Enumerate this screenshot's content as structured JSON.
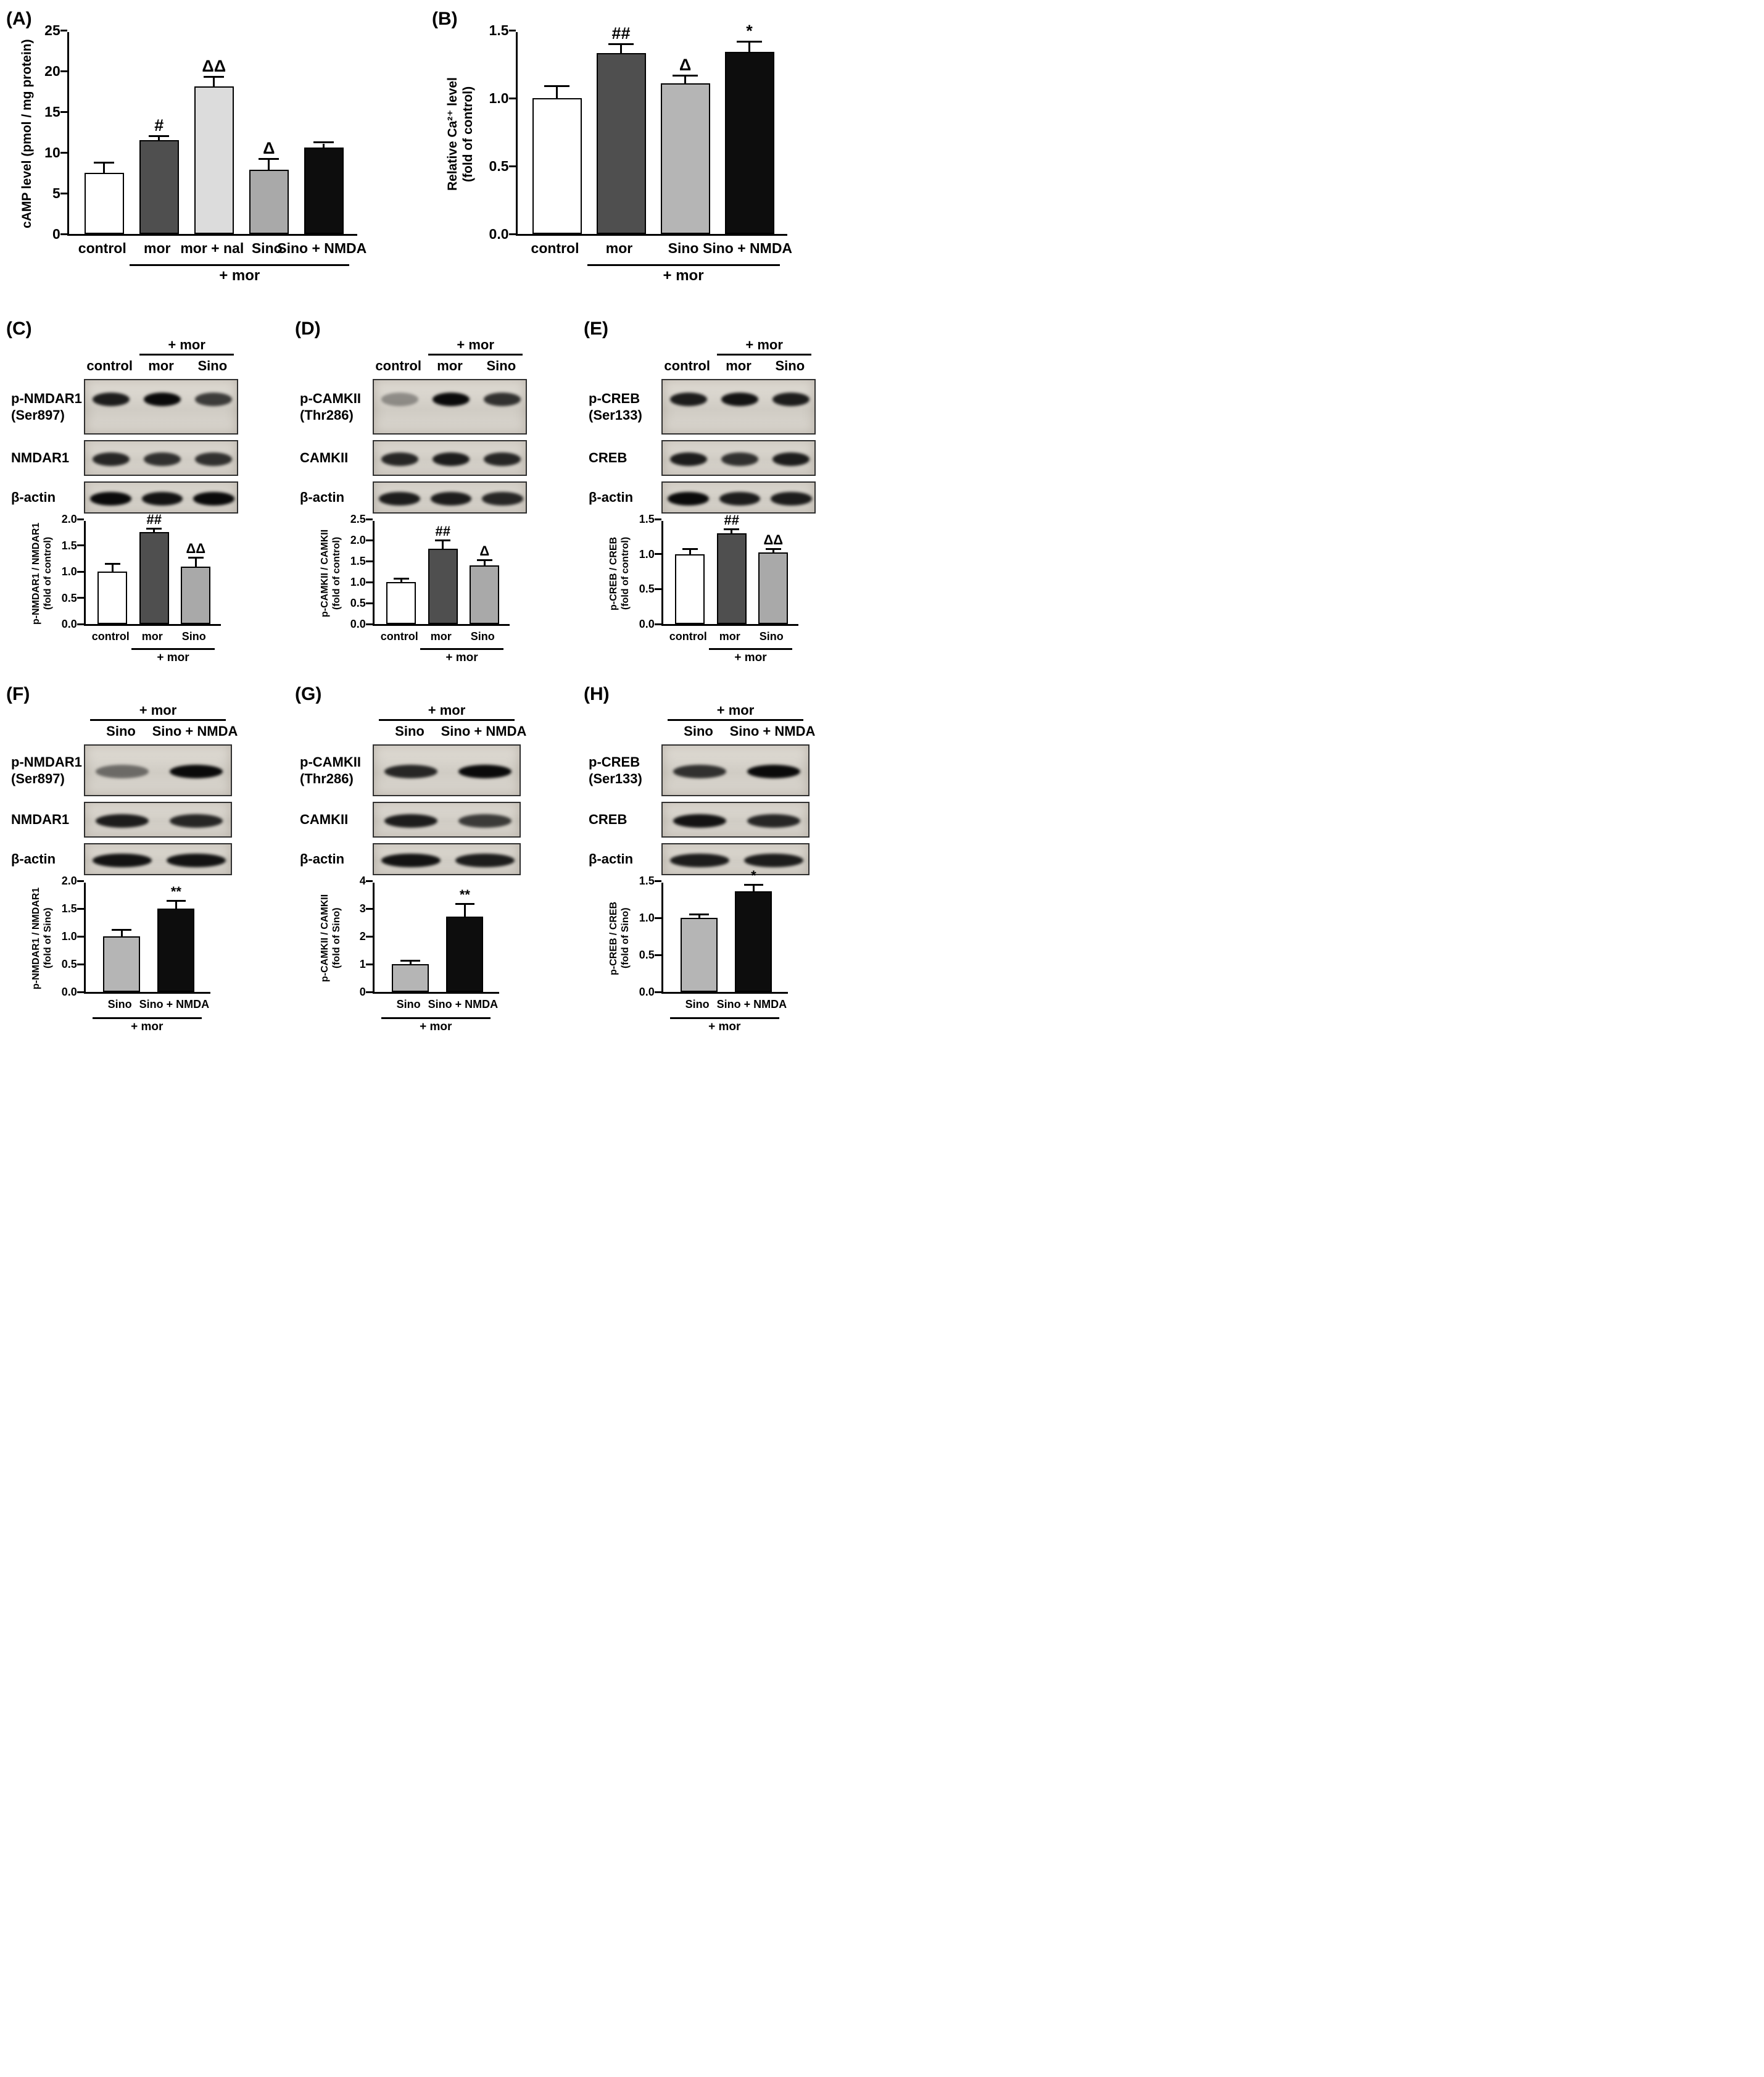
{
  "panels": {
    "A": {
      "label": "(A)"
    },
    "B": {
      "label": "(B)"
    },
    "C": {
      "label": "(C)",
      "blot": {
        "group_label": "+ mor",
        "group_span": [
          1,
          2
        ],
        "lanes": [
          "control",
          "mor",
          "Sino"
        ],
        "rows": [
          {
            "label": "p-NMDAR1",
            "sublabel": "(Ser897)",
            "bands": [
              0.9,
              1,
              0.75
            ]
          },
          {
            "label": "NMDAR1",
            "bands": [
              0.85,
              0.8,
              0.8
            ]
          },
          {
            "label": "β-actin",
            "bands": [
              1,
              0.95,
              1
            ]
          }
        ]
      }
    },
    "D": {
      "label": "(D)",
      "blot": {
        "group_label": "+ mor",
        "group_span": [
          1,
          2
        ],
        "lanes": [
          "control",
          "mor",
          "Sino"
        ],
        "rows": [
          {
            "label": "p-CAMKII",
            "sublabel": "(Thr286)",
            "bands": [
              0.35,
              1,
              0.8
            ]
          },
          {
            "label": "CAMKII",
            "bands": [
              0.85,
              0.9,
              0.85
            ]
          },
          {
            "label": "β-actin",
            "bands": [
              0.9,
              0.9,
              0.85
            ]
          }
        ]
      }
    },
    "E": {
      "label": "(E)",
      "blot": {
        "group_label": "+ mor",
        "group_span": [
          1,
          2
        ],
        "lanes": [
          "control",
          "mor",
          "Sino"
        ],
        "rows": [
          {
            "label": "p-CREB",
            "sublabel": "(Ser133)",
            "bands": [
              0.9,
              0.95,
              0.9
            ]
          },
          {
            "label": "CREB",
            "bands": [
              0.9,
              0.8,
              0.9
            ]
          },
          {
            "label": "β-actin",
            "bands": [
              1,
              0.9,
              0.9
            ]
          }
        ]
      }
    },
    "F": {
      "label": "(F)",
      "blot": {
        "group_label": "+ mor",
        "group_span": [
          0,
          1
        ],
        "lanes": [
          "Sino",
          "Sino + NMDA"
        ],
        "rows": [
          {
            "label": "p-NMDAR1",
            "sublabel": "(Ser897)",
            "bands": [
              0.5,
              1
            ]
          },
          {
            "label": "NMDAR1",
            "bands": [
              0.9,
              0.85
            ]
          },
          {
            "label": "β-actin",
            "bands": [
              0.95,
              0.95
            ]
          }
        ]
      }
    },
    "G": {
      "label": "(G)",
      "blot": {
        "group_label": "+ mor",
        "group_span": [
          0,
          1
        ],
        "lanes": [
          "Sino",
          "Sino + NMDA"
        ],
        "rows": [
          {
            "label": "p-CAMKII",
            "sublabel": "(Thr286)",
            "bands": [
              0.85,
              1
            ]
          },
          {
            "label": "CAMKII",
            "bands": [
              0.9,
              0.75
            ]
          },
          {
            "label": "β-actin",
            "bands": [
              0.95,
              0.9
            ]
          }
        ]
      }
    },
    "H": {
      "label": "(H)",
      "blot": {
        "group_label": "+ mor",
        "group_span": [
          0,
          1
        ],
        "lanes": [
          "Sino",
          "Sino + NMDA"
        ],
        "rows": [
          {
            "label": "p-CREB",
            "sublabel": "(Ser133)",
            "bands": [
              0.8,
              1
            ]
          },
          {
            "label": "CREB",
            "bands": [
              0.95,
              0.85
            ]
          },
          {
            "label": "β-actin",
            "bands": [
              0.9,
              0.9
            ]
          }
        ]
      }
    }
  },
  "chart_data": [
    {
      "panel": "A",
      "type": "bar",
      "ylabel": "cAMP level (pmol / mg protein)",
      "ylim": [
        0,
        25
      ],
      "yticks": [
        "0",
        "5",
        "10",
        "15",
        "20",
        "25"
      ],
      "categories": [
        "control",
        "mor",
        "mor + nal",
        "Sino",
        "Sino + NMDA"
      ],
      "values": [
        7.5,
        11.5,
        18.1,
        7.9,
        10.6
      ],
      "errors": [
        1.1,
        0.4,
        1.1,
        1.2,
        0.5
      ],
      "annotations": [
        "",
        "#",
        "ΔΔ",
        "Δ",
        ""
      ],
      "bar_colors": [
        "#ffffff",
        "#4f4f4f",
        "#dcdcdc",
        "#a9a9a9",
        "#0d0d0d"
      ],
      "group_label": "+ mor",
      "group_span": [
        1,
        4
      ]
    },
    {
      "panel": "B",
      "type": "bar",
      "ylabel": "Relative Ca²⁺ level\n(fold of control)",
      "ylim": [
        0,
        1.5
      ],
      "yticks": [
        "0.0",
        "0.5",
        "1.0",
        "1.5"
      ],
      "categories": [
        "control",
        "mor",
        "Sino",
        "Sino + NMDA"
      ],
      "values": [
        1.0,
        1.33,
        1.11,
        1.34
      ],
      "errors": [
        0.08,
        0.06,
        0.05,
        0.07
      ],
      "annotations": [
        "",
        "##",
        "Δ",
        "*"
      ],
      "bar_colors": [
        "#ffffff",
        "#4f4f4f",
        "#b5b5b5",
        "#0d0d0d"
      ],
      "group_label": "+ mor",
      "group_span": [
        1,
        3
      ]
    },
    {
      "panel": "C",
      "type": "bar",
      "ylabel": "p-NMDAR1 / NMDAR1\n(fold of control)",
      "ylim": [
        0,
        2.0
      ],
      "yticks": [
        "0.0",
        "0.5",
        "1.0",
        "1.5",
        "2.0"
      ],
      "categories": [
        "control",
        "mor",
        "Sino"
      ],
      "values": [
        1.0,
        1.75,
        1.1
      ],
      "errors": [
        0.13,
        0.05,
        0.15
      ],
      "annotations": [
        "",
        "##",
        "ΔΔ"
      ],
      "bar_colors": [
        "#ffffff",
        "#4f4f4f",
        "#a9a9a9"
      ],
      "group_label": "+ mor",
      "group_span": [
        1,
        2
      ]
    },
    {
      "panel": "D",
      "type": "bar",
      "ylabel": "p-CAMKII / CAMKII\n(fold of control)",
      "ylim": [
        0,
        2.5
      ],
      "yticks": [
        "0.0",
        "0.5",
        "1.0",
        "1.5",
        "2.0",
        "2.5"
      ],
      "categories": [
        "control",
        "mor",
        "Sino"
      ],
      "values": [
        1.0,
        1.8,
        1.4
      ],
      "errors": [
        0.06,
        0.17,
        0.1
      ],
      "annotations": [
        "",
        "##",
        "Δ"
      ],
      "bar_colors": [
        "#ffffff",
        "#4f4f4f",
        "#a9a9a9"
      ],
      "group_label": "+ mor",
      "group_span": [
        1,
        2
      ]
    },
    {
      "panel": "E",
      "type": "bar",
      "ylabel": "p-CREB / CREB\n(fold of control)",
      "ylim": [
        0,
        1.5
      ],
      "yticks": [
        "0.0",
        "0.5",
        "1.0",
        "1.5"
      ],
      "categories": [
        "control",
        "mor",
        "Sino"
      ],
      "values": [
        1.0,
        1.3,
        1.02
      ],
      "errors": [
        0.06,
        0.04,
        0.04
      ],
      "annotations": [
        "",
        "##",
        "ΔΔ"
      ],
      "bar_colors": [
        "#ffffff",
        "#4f4f4f",
        "#a9a9a9"
      ],
      "group_label": "+ mor",
      "group_span": [
        1,
        2
      ]
    },
    {
      "panel": "F",
      "type": "bar",
      "ylabel": "p-NMDAR1 / NMDAR1\n(fold of Sino)",
      "ylim": [
        0,
        2.0
      ],
      "yticks": [
        "0.0",
        "0.5",
        "1.0",
        "1.5",
        "2.0"
      ],
      "categories": [
        "Sino",
        "Sino + NMDA"
      ],
      "values": [
        1.0,
        1.5
      ],
      "errors": [
        0.1,
        0.12
      ],
      "annotations": [
        "",
        "**"
      ],
      "bar_colors": [
        "#b5b5b5",
        "#0d0d0d"
      ],
      "group_label": "+ mor",
      "group_span": [
        0,
        1
      ]
    },
    {
      "panel": "G",
      "type": "bar",
      "ylabel": "p-CAMKII / CAMKII\n(fold of Sino)",
      "ylim": [
        0,
        4
      ],
      "yticks": [
        "0",
        "1",
        "2",
        "3",
        "4"
      ],
      "categories": [
        "Sino",
        "Sino + NMDA"
      ],
      "values": [
        1.0,
        2.72
      ],
      "errors": [
        0.08,
        0.42
      ],
      "annotations": [
        "",
        "**"
      ],
      "bar_colors": [
        "#b5b5b5",
        "#0d0d0d"
      ],
      "group_label": "+ mor",
      "group_span": [
        0,
        1
      ]
    },
    {
      "panel": "H",
      "type": "bar",
      "ylabel": "p-CREB / CREB\n(fold of Sino)",
      "ylim": [
        0,
        1.5
      ],
      "yticks": [
        "0.0",
        "0.5",
        "1.0",
        "1.5"
      ],
      "categories": [
        "Sino",
        "Sino + NMDA"
      ],
      "values": [
        1.0,
        1.36
      ],
      "errors": [
        0.03,
        0.07
      ],
      "annotations": [
        "",
        "*"
      ],
      "bar_colors": [
        "#b5b5b5",
        "#0d0d0d"
      ],
      "group_label": "+ mor",
      "group_span": [
        0,
        1
      ]
    }
  ]
}
